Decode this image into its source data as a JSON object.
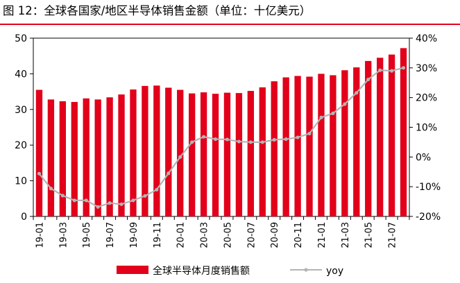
{
  "title": "图 12：全球各国家/地区半导体销售金额（单位：十亿美元）",
  "colors": {
    "bars": "#e2001a",
    "line": "#b4b4b4",
    "title_rule": "#e2001a"
  },
  "chart_data": {
    "type": "bar",
    "categories": [
      "19-01",
      "19-02",
      "19-03",
      "19-04",
      "19-05",
      "19-06",
      "19-07",
      "19-08",
      "19-09",
      "19-10",
      "19-11",
      "19-12",
      "20-01",
      "20-02",
      "20-03",
      "20-04",
      "20-05",
      "20-06",
      "20-07",
      "20-08",
      "20-09",
      "20-10",
      "20-11",
      "20-12",
      "21-01",
      "21-02",
      "21-03",
      "21-04",
      "21-05",
      "21-06",
      "21-07",
      "21-08"
    ],
    "x_tick_labels": [
      "19-01",
      "19-03",
      "19-05",
      "19-07",
      "19-09",
      "19-11",
      "20-01",
      "20-03",
      "20-05",
      "20-07",
      "20-09",
      "20-11",
      "21-01",
      "21-03",
      "21-05",
      "21-07"
    ],
    "series": [
      {
        "name": "全球半导体月度销售额",
        "type": "bar",
        "axis": "left",
        "values": [
          35.5,
          32.8,
          32.3,
          32.1,
          33.1,
          32.8,
          33.4,
          34.2,
          35.6,
          36.6,
          36.7,
          36.1,
          35.5,
          34.5,
          34.8,
          34.4,
          34.7,
          34.6,
          35.2,
          36.2,
          37.9,
          39.0,
          39.4,
          39.2,
          40.0,
          39.6,
          41.0,
          41.8,
          43.6,
          44.5,
          45.4,
          47.2
        ]
      },
      {
        "name": "yoy",
        "type": "line",
        "axis": "right",
        "unit": "%",
        "values": [
          -5.6,
          -10.6,
          -13.0,
          -14.6,
          -14.6,
          -16.8,
          -15.5,
          -15.9,
          -14.6,
          -13.1,
          -11.0,
          -5.5,
          0.0,
          5.0,
          6.8,
          6.0,
          5.9,
          5.2,
          5.0,
          5.0,
          5.8,
          6.0,
          6.6,
          7.9,
          13.3,
          14.7,
          17.8,
          21.6,
          26.1,
          29.2,
          29.0,
          30.0
        ]
      }
    ],
    "y_left": {
      "min": 0,
      "max": 50,
      "ticks": [
        "0",
        "10",
        "20",
        "30",
        "40",
        "50"
      ]
    },
    "y_right": {
      "min": -20,
      "max": 40,
      "ticks": [
        "-20%",
        "-10%",
        "0%",
        "10%",
        "20%",
        "30%",
        "40%"
      ]
    },
    "legend_position": "bottom",
    "grid": false
  }
}
